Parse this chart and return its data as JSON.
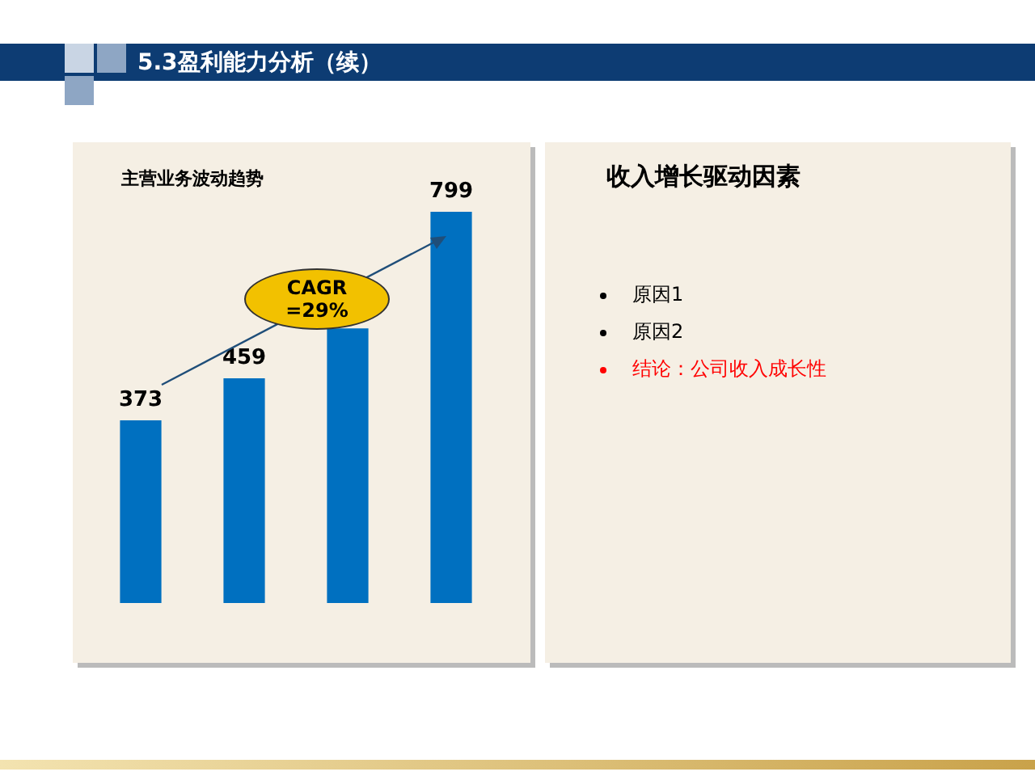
{
  "chart_data": [
    {
      "type": "bar",
      "title": "5.3盈利能力分析（续）",
      "subtitle": "主营业务波动趋势",
      "categories": [
        null,
        null,
        null,
        null
      ],
      "values": [
        373,
        459,
        561,
        799
      ],
      "value_labels": [
        "373",
        "459",
        null,
        "799"
      ],
      "color": "#0070c0",
      "annotations": [
        "CAGR =29%"
      ]
    },
    {
      "type": "other",
      "title": "收入增长驱动因素",
      "annotations": [
        "原因1",
        "原因2",
        "结论：公司收入成长性"
      ]
    }
  ]
}
